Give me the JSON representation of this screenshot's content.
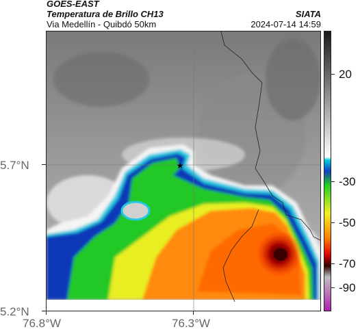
{
  "header": {
    "satellite": "GOES-EAST",
    "product": "Temperatura de Brillo CH13",
    "region": "Via Medellín - Quibdó 50km",
    "agency": "SIATA",
    "datetime": "2024-07-14 14:59"
  },
  "axes": {
    "lat_labels": [
      "5.7°N",
      "5.2°N"
    ],
    "lon_labels": [
      "76.8°W",
      "76.3°W"
    ]
  },
  "colorbar": {
    "ticks": [
      "20",
      "-30",
      "-50",
      "-70",
      "-90"
    ],
    "colors": [
      "#1a1a1a",
      "#ffffff",
      "#00d0e0",
      "#1040c0",
      "#20d020",
      "#f0f020",
      "#ff8000",
      "#e00000",
      "#300000",
      "#c0c0c0",
      "#b020b0"
    ]
  },
  "map": {
    "marker": "star-icon",
    "cold_core_color": "#5a0000"
  }
}
